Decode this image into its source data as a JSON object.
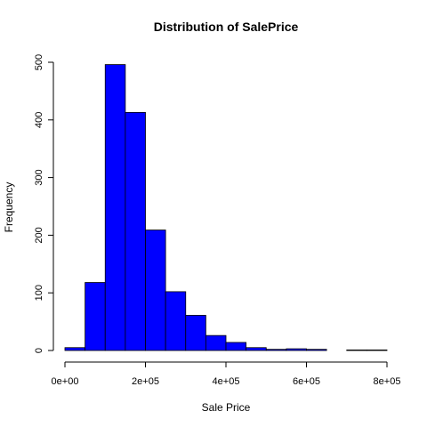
{
  "chart_data": {
    "type": "bar",
    "title": "Distribution of SalePrice",
    "xlabel": "Sale Price",
    "ylabel": "Frequency",
    "bar_color": "#0000ff",
    "bin_width": 50000,
    "bins": [
      {
        "start": 0,
        "end": 50000,
        "count": 5
      },
      {
        "start": 50000,
        "end": 100000,
        "count": 118
      },
      {
        "start": 100000,
        "end": 150000,
        "count": 496
      },
      {
        "start": 150000,
        "end": 200000,
        "count": 413
      },
      {
        "start": 200000,
        "end": 250000,
        "count": 209
      },
      {
        "start": 250000,
        "end": 300000,
        "count": 102
      },
      {
        "start": 300000,
        "end": 350000,
        "count": 61
      },
      {
        "start": 350000,
        "end": 400000,
        "count": 26
      },
      {
        "start": 400000,
        "end": 450000,
        "count": 14
      },
      {
        "start": 450000,
        "end": 500000,
        "count": 5
      },
      {
        "start": 500000,
        "end": 550000,
        "count": 2
      },
      {
        "start": 550000,
        "end": 600000,
        "count": 3
      },
      {
        "start": 600000,
        "end": 650000,
        "count": 2
      },
      {
        "start": 650000,
        "end": 700000,
        "count": 0
      },
      {
        "start": 700000,
        "end": 750000,
        "count": 1
      },
      {
        "start": 750000,
        "end": 800000,
        "count": 1
      }
    ],
    "xlim": [
      0,
      800000
    ],
    "ylim": [
      0,
      500
    ],
    "x_ticks": [
      {
        "value": 0,
        "label": "0e+00"
      },
      {
        "value": 200000,
        "label": "2e+05"
      },
      {
        "value": 400000,
        "label": "4e+05"
      },
      {
        "value": 600000,
        "label": "6e+05"
      },
      {
        "value": 800000,
        "label": "8e+05"
      }
    ],
    "y_ticks": [
      {
        "value": 0,
        "label": "0"
      },
      {
        "value": 100,
        "label": "100"
      },
      {
        "value": 200,
        "label": "200"
      },
      {
        "value": 300,
        "label": "300"
      },
      {
        "value": 400,
        "label": "400"
      },
      {
        "value": 500,
        "label": "500"
      }
    ],
    "grid": false,
    "legend": "none"
  }
}
